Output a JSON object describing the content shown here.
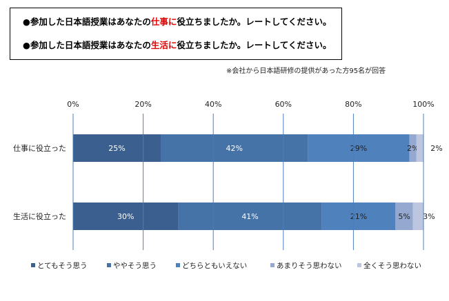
{
  "header": {
    "questions": [
      {
        "prefix": "●参加した日本語授業はあなたの",
        "highlight": "仕事に",
        "suffix": "役立ちましたか。レートしてください。"
      },
      {
        "prefix": "●参加した日本語授業はあなたの",
        "highlight": "生活に",
        "suffix": "役立ちましたか。レートしてください。"
      }
    ],
    "note": "※会社から日本語研修の提供があった方95名が回答"
  },
  "chart_data": {
    "type": "bar",
    "orientation": "horizontal",
    "stacked": true,
    "categories": [
      "仕事に役立った",
      "生活に役立った"
    ],
    "series": [
      {
        "name": "とてもそう思う",
        "values": [
          25,
          30
        ],
        "color": "#3b5f8e"
      },
      {
        "name": "ややそう思う",
        "values": [
          42,
          41
        ],
        "color": "#4572a7"
      },
      {
        "name": "どちらともいえない",
        "values": [
          29,
          21
        ],
        "color": "#4f81bd"
      },
      {
        "name": "あまりそう思わない",
        "values": [
          2,
          5
        ],
        "color": "#95a9d0"
      },
      {
        "name": "全くそう思わない",
        "values": [
          2,
          3
        ],
        "color": "#bcc6e0"
      }
    ],
    "data_labels": [
      [
        "25%",
        "42%",
        "29%",
        "2%",
        "2%"
      ],
      [
        "30%",
        "41%",
        "21%",
        "5%",
        "3%"
      ]
    ],
    "xticks": [
      "0%",
      "20%",
      "40%",
      "60%",
      "80%",
      "100%"
    ],
    "xlim": [
      0,
      100
    ],
    "grid": true,
    "legend_position": "bottom"
  }
}
